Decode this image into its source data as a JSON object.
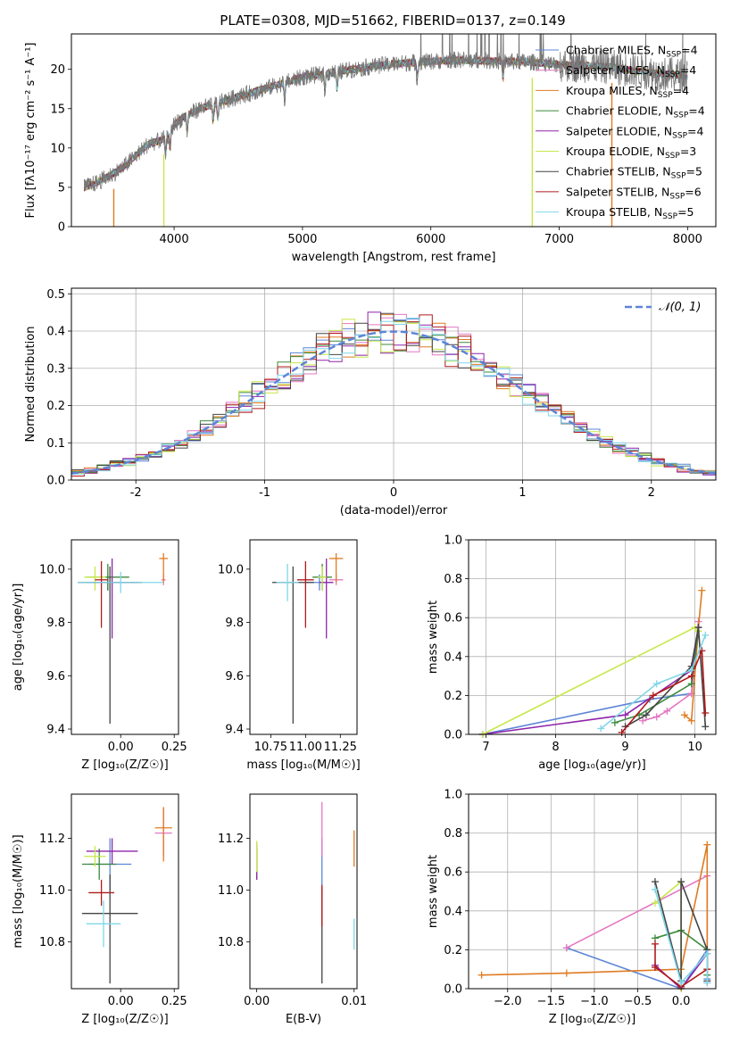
{
  "figure": {
    "title": "PLATE=0308, MJD=51662, FIBERID=0137, z=0.149"
  },
  "chart_data": [
    {
      "id": "spectrum",
      "type": "line",
      "title": "PLATE=0308, MJD=51662, FIBERID=0137, z=0.149",
      "xlabel": "wavelength [Angstrom, rest frame]",
      "ylabel": "Flux [fλ10⁻¹⁷ erg cm⁻² s⁻¹ A⁻¹]",
      "xlim": [
        3200,
        8220
      ],
      "ylim": [
        0,
        24.5
      ],
      "xticks": [
        4000,
        5000,
        6000,
        7000,
        8000
      ],
      "yticks": [
        0,
        5,
        10,
        15,
        20
      ],
      "grid": false,
      "legend_position": "right",
      "legend": [
        {
          "name": "Chabrier MILES, N",
          "sub": "SSP",
          "tail": "=4",
          "color": "#5c85d6"
        },
        {
          "name": "Salpeter MILES, N",
          "sub": "SSP",
          "tail": "=4",
          "color": "#e377c2"
        },
        {
          "name": "Kroupa MILES, N",
          "sub": "SSP",
          "tail": "=4",
          "color": "#e07b22"
        },
        {
          "name": "Chabrier ELODIE, N",
          "sub": "SSP",
          "tail": "=4",
          "color": "#3c8a3c"
        },
        {
          "name": "Salpeter ELODIE, N",
          "sub": "SSP",
          "tail": "=4",
          "color": "#8e24aa"
        },
        {
          "name": "Kroupa ELODIE, N",
          "sub": "SSP",
          "tail": "=3",
          "color": "#c7e84a"
        },
        {
          "name": "Chabrier STELIB, N",
          "sub": "SSP",
          "tail": "=5",
          "color": "#444444"
        },
        {
          "name": "Salpeter STELIB, N",
          "sub": "SSP",
          "tail": "=6",
          "color": "#b01c1c"
        },
        {
          "name": "Kroupa STELIB, N",
          "sub": "SSP",
          "tail": "=5",
          "color": "#7fd6e8"
        }
      ],
      "data_color": "#777777",
      "continuum": {
        "x": [
          3300,
          3400,
          3500,
          3600,
          3700,
          3800,
          3900,
          3950,
          4000,
          4100,
          4200,
          4400,
          4600,
          4800,
          5000,
          5200,
          5400,
          5600,
          5800,
          6000,
          6200,
          6400,
          6600,
          6800,
          7000,
          7200,
          7400,
          7600,
          7800,
          8000
        ],
        "y": [
          5.0,
          5.6,
          6.5,
          7.5,
          9.0,
          10.5,
          11.0,
          11.5,
          13.0,
          14.2,
          15.0,
          16.0,
          17.0,
          18.0,
          19.0,
          19.5,
          20.0,
          20.5,
          20.8,
          21.0,
          21.2,
          21.1,
          21.0,
          20.9,
          20.6,
          20.5,
          20.3,
          19.8,
          19.4,
          19.2
        ]
      },
      "absorption_lines": [
        3934,
        3969,
        4102,
        4304,
        4341,
        4861,
        5175,
        5270,
        5893,
        6563
      ],
      "model_dropouts": [
        {
          "x": 3530,
          "color": "#e07b22"
        },
        {
          "x": 3920,
          "color": "#c7e84a"
        },
        {
          "x": 6790,
          "color": "#c7e84a"
        },
        {
          "x": 7410,
          "color": "#e07b22"
        }
      ]
    },
    {
      "id": "residuals",
      "type": "histogram",
      "xlabel": "(data-model)/error",
      "ylabel": "Normed distribution",
      "xlim": [
        -2.5,
        2.5
      ],
      "ylim": [
        0,
        0.515
      ],
      "xticks": [
        -2,
        -1,
        0,
        1,
        2
      ],
      "yticks": [
        0.0,
        0.1,
        0.2,
        0.3,
        0.4,
        0.5
      ],
      "grid": true,
      "legend_position": "top-right",
      "legend_label": "𝒩(0, 1)",
      "reference_curve": {
        "type": "gaussian",
        "mean": 0,
        "sigma": 1,
        "color": "#5c85d6"
      },
      "bin_width": 0.1
    },
    {
      "id": "age_vs_Z",
      "type": "errorbar",
      "xlabel": "Z [log₁₀(Z/Z☉)]",
      "ylabel": "age  [log₁₀(age/yr)]",
      "xlim": [
        -0.23,
        0.27
      ],
      "ylim": [
        9.38,
        10.11
      ],
      "xticks": [
        0.0,
        0.25
      ],
      "xticklabels": [
        "0.00",
        "0.25"
      ],
      "yticks": [
        9.4,
        9.6,
        9.8,
        10.0
      ],
      "series": [
        {
          "color": "#5c85d6",
          "x": -0.06,
          "xerr": 0.09,
          "y": 9.95,
          "yerr": [
            0.03,
            0.03
          ]
        },
        {
          "color": "#e377c2",
          "x": 0.2,
          "xerr": 0.01,
          "y": 9.96,
          "yerr": [
            0.02,
            0.02
          ]
        },
        {
          "color": "#e07b22",
          "x": 0.2,
          "xerr": 0.02,
          "y": 10.04,
          "yerr": [
            0.09,
            0.02
          ]
        },
        {
          "color": "#3c8a3c",
          "x": -0.06,
          "xerr": 0.1,
          "y": 9.97,
          "yerr": [
            0.05,
            0.05
          ]
        },
        {
          "color": "#8e24aa",
          "x": -0.04,
          "xerr": 0.12,
          "y": 9.95,
          "yerr": [
            0.21,
            0.09
          ]
        },
        {
          "color": "#c7e84a",
          "x": -0.12,
          "xerr": 0.05,
          "y": 9.97,
          "yerr": [
            0.05,
            0.04
          ]
        },
        {
          "color": "#444444",
          "x": -0.05,
          "xerr": 0.15,
          "y": 9.95,
          "yerr": [
            0.53,
            0.06
          ]
        },
        {
          "color": "#b01c1c",
          "x": -0.09,
          "xerr": 0.03,
          "y": 9.96,
          "yerr": [
            0.18,
            0.07
          ]
        },
        {
          "color": "#7fd6e8",
          "x": 0.0,
          "xerr": 0.2,
          "y": 9.95,
          "yerr": [
            0.04,
            0.04
          ]
        }
      ]
    },
    {
      "id": "age_vs_mass",
      "type": "errorbar",
      "xlabel": "mass [log₁₀(M/M☉)]",
      "xlim": [
        10.6,
        11.37
      ],
      "ylim": [
        9.38,
        10.11
      ],
      "xticks": [
        10.75,
        11.0,
        11.25
      ],
      "xticklabels": [
        "10.75",
        "11.00",
        "11.25"
      ],
      "yticks": [
        9.4,
        9.6,
        9.8,
        10.0
      ],
      "series": [
        {
          "color": "#5c85d6",
          "x": 11.1,
          "xerr": 0.1,
          "y": 9.95,
          "yerr": [
            0.03,
            0.03
          ]
        },
        {
          "color": "#e377c2",
          "x": 11.22,
          "xerr": 0.05,
          "y": 9.96,
          "yerr": [
            0.02,
            0.02
          ]
        },
        {
          "color": "#e07b22",
          "x": 11.22,
          "xerr": 0.05,
          "y": 10.04,
          "yerr": [
            0.09,
            0.02
          ]
        },
        {
          "color": "#3c8a3c",
          "x": 11.12,
          "xerr": 0.07,
          "y": 9.97,
          "yerr": [
            0.05,
            0.05
          ]
        },
        {
          "color": "#8e24aa",
          "x": 11.15,
          "xerr": 0.05,
          "y": 9.95,
          "yerr": [
            0.21,
            0.09
          ]
        },
        {
          "color": "#c7e84a",
          "x": 11.12,
          "xerr": 0.03,
          "y": 9.97,
          "yerr": [
            0.05,
            0.04
          ]
        },
        {
          "color": "#444444",
          "x": 10.91,
          "xerr": 0.15,
          "y": 9.95,
          "yerr": [
            0.53,
            0.06
          ]
        },
        {
          "color": "#b01c1c",
          "x": 11.0,
          "xerr": 0.06,
          "y": 9.96,
          "yerr": [
            0.18,
            0.07
          ]
        },
        {
          "color": "#7fd6e8",
          "x": 10.87,
          "xerr": 0.08,
          "y": 9.95,
          "yerr": [
            0.07,
            0.07
          ]
        }
      ]
    },
    {
      "id": "weight_vs_age",
      "type": "line",
      "xlabel": "age  [log₁₀(age/yr)]",
      "ylabel": "mass weight",
      "xlim": [
        6.75,
        10.3
      ],
      "ylim": [
        0,
        1.0
      ],
      "xticks": [
        7,
        8,
        9,
        10
      ],
      "yticks": [
        0.0,
        0.2,
        0.4,
        0.6,
        0.8,
        1.0
      ],
      "grid": true,
      "series": [
        {
          "color": "#5c85d6",
          "x": [
            6.95,
            9.35,
            9.95,
            10.05
          ],
          "y": [
            0.0,
            0.18,
            0.21,
            0.55
          ]
        },
        {
          "color": "#e377c2",
          "x": [
            9.25,
            9.45,
            9.6,
            9.95,
            10.05
          ],
          "y": [
            0.07,
            0.09,
            0.12,
            0.21,
            0.58
          ]
        },
        {
          "color": "#e07b22",
          "x": [
            9.85,
            9.95,
            10.05,
            10.1
          ],
          "y": [
            0.1,
            0.07,
            0.55,
            0.74
          ]
        },
        {
          "color": "#3c8a3c",
          "x": [
            8.85,
            9.2,
            9.95,
            10.05
          ],
          "y": [
            0.06,
            0.1,
            0.26,
            0.53
          ]
        },
        {
          "color": "#8e24aa",
          "x": [
            6.95,
            9.0,
            9.95,
            10.05
          ],
          "y": [
            0.0,
            0.1,
            0.33,
            0.55
          ]
        },
        {
          "color": "#c7e84a",
          "x": [
            6.95,
            10.0,
            10.05
          ],
          "y": [
            0.0,
            0.55,
            0.53
          ]
        },
        {
          "color": "#444444",
          "x": [
            9.0,
            9.3,
            9.95,
            10.05,
            10.15
          ],
          "y": [
            0.04,
            0.1,
            0.35,
            0.55,
            0.04
          ]
        },
        {
          "color": "#b01c1c",
          "x": [
            8.95,
            9.4,
            9.95,
            10.1,
            10.15
          ],
          "y": [
            0.01,
            0.2,
            0.3,
            0.43,
            0.11
          ]
        },
        {
          "color": "#7fd6e8",
          "x": [
            8.65,
            9.45,
            9.95,
            10.15
          ],
          "y": [
            0.03,
            0.26,
            0.33,
            0.51
          ]
        }
      ]
    },
    {
      "id": "mass_vs_Z",
      "type": "errorbar",
      "xlabel": "Z [log₁₀(Z/Z☉)]",
      "ylabel": "mass [log₁₀(M/M☉)]",
      "xlim": [
        -0.23,
        0.27
      ],
      "ylim": [
        10.62,
        11.37
      ],
      "xticks": [
        0.0,
        0.25
      ],
      "xticklabels": [
        "0.00",
        "0.25"
      ],
      "yticks": [
        10.8,
        11.0,
        11.2
      ],
      "series": [
        {
          "color": "#5c85d6",
          "x": -0.05,
          "xerr": 0.1,
          "y": 11.1,
          "yerr": [
            0.1,
            0.1
          ]
        },
        {
          "color": "#e377c2",
          "x": 0.2,
          "xerr": 0.04,
          "y": 11.22,
          "yerr": [
            0.09,
            0.1
          ]
        },
        {
          "color": "#e07b22",
          "x": 0.2,
          "xerr": 0.04,
          "y": 11.24,
          "yerr": [
            0.13,
            0.08
          ]
        },
        {
          "color": "#3c8a3c",
          "x": -0.1,
          "xerr": 0.08,
          "y": 11.1,
          "yerr": [
            0.06,
            0.06
          ]
        },
        {
          "color": "#8e24aa",
          "x": -0.04,
          "xerr": 0.12,
          "y": 11.15,
          "yerr": [
            0.05,
            0.05
          ]
        },
        {
          "color": "#c7e84a",
          "x": -0.12,
          "xerr": 0.05,
          "y": 11.13,
          "yerr": [
            0.04,
            0.04
          ]
        },
        {
          "color": "#444444",
          "x": -0.05,
          "xerr": 0.13,
          "y": 10.91,
          "yerr": [
            0.27,
            0.15
          ]
        },
        {
          "color": "#b01c1c",
          "x": -0.09,
          "xerr": 0.06,
          "y": 10.99,
          "yerr": [
            0.05,
            0.05
          ]
        },
        {
          "color": "#7fd6e8",
          "x": -0.08,
          "xerr": 0.08,
          "y": 10.87,
          "yerr": [
            0.09,
            0.09
          ]
        }
      ]
    },
    {
      "id": "mass_vs_EBV",
      "type": "errorbar",
      "xlabel": "E(B-V)",
      "xlim": [
        -0.0007,
        0.0103
      ],
      "ylim": [
        10.62,
        11.37
      ],
      "xticks": [
        0.0,
        0.01
      ],
      "xticklabels": [
        "0.00",
        "0.01"
      ],
      "yticks": [
        10.8,
        11.0,
        11.2
      ],
      "series": [
        {
          "color": "#5c85d6",
          "x": 0.0067,
          "xerr": 0.0,
          "y": 11.1,
          "yerr": [
            0.1,
            0.1
          ]
        },
        {
          "color": "#e377c2",
          "x": 0.0067,
          "xerr": 0.0,
          "y": 11.22,
          "yerr": [
            0.09,
            0.12
          ]
        },
        {
          "color": "#e07b22",
          "x": 0.01,
          "xerr": 0.0,
          "y": 11.16,
          "yerr": [
            0.07,
            0.07
          ]
        },
        {
          "color": "#3c8a3c",
          "x": 0.0,
          "xerr": 0.0,
          "y": 11.1,
          "yerr": [
            0.06,
            0.06
          ]
        },
        {
          "color": "#8e24aa",
          "x": 0.0,
          "xerr": 0.0,
          "y": 11.12,
          "yerr": [
            0.08,
            0.06
          ]
        },
        {
          "color": "#c7e84a",
          "x": 0.0,
          "xerr": 0.0,
          "y": 11.13,
          "yerr": [
            0.06,
            0.06
          ]
        },
        {
          "color": "#444444",
          "x": 0.0067,
          "xerr": 0.0,
          "y": 10.91,
          "yerr": [
            0.27,
            0.1
          ]
        },
        {
          "color": "#b01c1c",
          "x": 0.0067,
          "xerr": 0.0,
          "y": 10.95,
          "yerr": [
            0.09,
            0.07
          ]
        },
        {
          "color": "#7fd6e8",
          "x": 0.01,
          "xerr": 0.0,
          "y": 10.83,
          "yerr": [
            0.06,
            0.06
          ]
        }
      ]
    },
    {
      "id": "weight_vs_Z",
      "type": "line",
      "xlabel": "Z [log₁₀(Z/Z☉)]",
      "ylabel": "mass weight",
      "xlim": [
        -2.45,
        0.4
      ],
      "ylim": [
        0,
        1.0
      ],
      "xticks": [
        -2.0,
        -1.5,
        -1.0,
        -0.5,
        0.0
      ],
      "xticklabels": [
        "−2.0",
        "−1.5",
        "−1.0",
        "−0.5",
        "0.0"
      ],
      "yticks": [
        0.0,
        0.2,
        0.4,
        0.6,
        0.8,
        1.0
      ],
      "grid": true,
      "series": [
        {
          "color": "#5c85d6",
          "x": [
            -1.32,
            0.0,
            0.3,
            0.3
          ],
          "y": [
            0.21,
            0.0,
            0.2,
            0.05
          ]
        },
        {
          "color": "#e377c2",
          "x": [
            -1.32,
            0.3,
            0.3
          ],
          "y": [
            0.21,
            0.58,
            0.03
          ]
        },
        {
          "color": "#e07b22",
          "x": [
            -2.3,
            -1.32,
            0.0,
            0.3,
            0.3
          ],
          "y": [
            0.07,
            0.08,
            0.1,
            0.74,
            0.1
          ]
        },
        {
          "color": "#3c8a3c",
          "x": [
            -0.3,
            0.0,
            0.3,
            0.3
          ],
          "y": [
            0.26,
            0.3,
            0.2,
            0.07
          ]
        },
        {
          "color": "#8e24aa",
          "x": [
            -0.3,
            0.0,
            0.3
          ],
          "y": [
            0.12,
            0.0,
            0.18
          ]
        },
        {
          "color": "#c7e84a",
          "x": [
            -0.3,
            0.0,
            0.0
          ],
          "y": [
            0.44,
            0.55,
            0.0
          ]
        },
        {
          "color": "#444444",
          "x": [
            -0.3,
            0.0,
            0.0,
            0.3,
            0.3
          ],
          "y": [
            0.55,
            0.04,
            0.55,
            0.2,
            0.04
          ]
        },
        {
          "color": "#b01c1c",
          "x": [
            -0.3,
            -0.3,
            0.0,
            0.3
          ],
          "y": [
            0.23,
            0.11,
            0.01,
            0.1
          ]
        },
        {
          "color": "#7fd6e8",
          "x": [
            -0.3,
            0.0,
            0.3,
            0.3
          ],
          "y": [
            0.51,
            0.03,
            0.18,
            0.03
          ]
        }
      ]
    }
  ]
}
